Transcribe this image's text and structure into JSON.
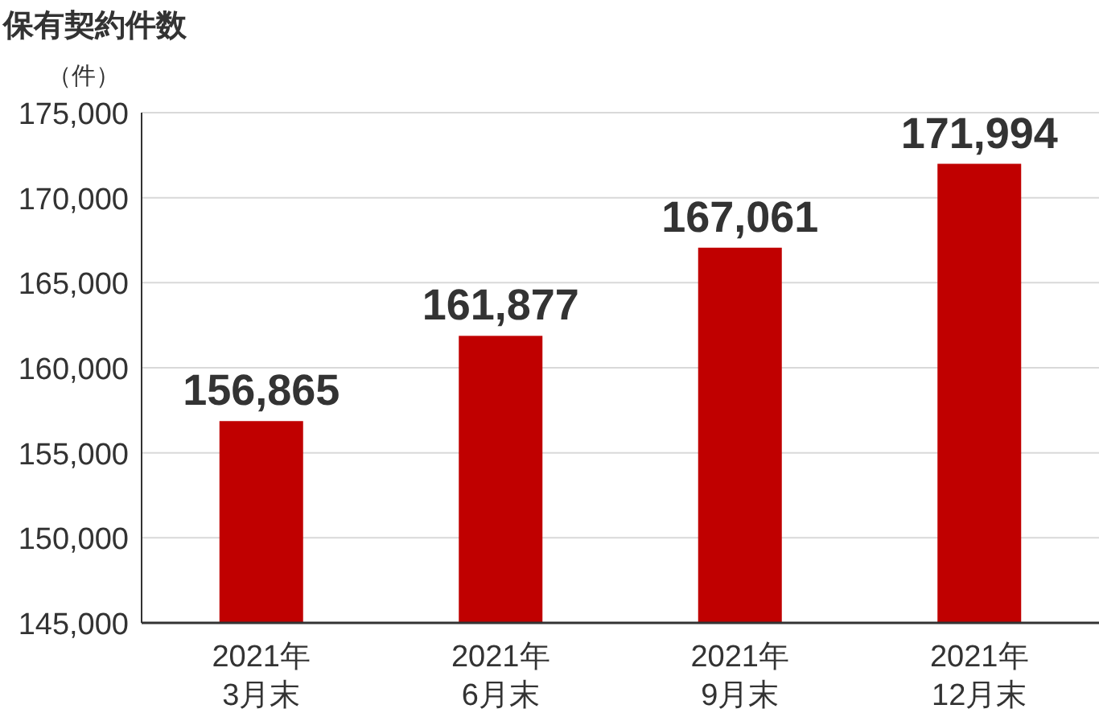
{
  "chart_data": {
    "type": "bar",
    "title": "保有契約件数",
    "ylabel": "（件）",
    "categories": [
      "2021年\n3月末",
      "2021年\n6月末",
      "2021年\n9月末",
      "2021年\n12月末"
    ],
    "values": [
      156865,
      161877,
      167061,
      171994
    ],
    "value_labels": [
      "156,865",
      "161,877",
      "167,061",
      "171,994"
    ],
    "color": "#c00000",
    "ylim": [
      145000,
      175000
    ],
    "yticks": [
      {
        "value": 145000,
        "label": "145,000"
      },
      {
        "value": 150000,
        "label": "150,000"
      },
      {
        "value": 155000,
        "label": "155,000"
      },
      {
        "value": 160000,
        "label": "160,000"
      },
      {
        "value": 165000,
        "label": "165,000"
      },
      {
        "value": 170000,
        "label": "170,000"
      },
      {
        "value": 175000,
        "label": "175,000"
      }
    ],
    "grid": "y"
  }
}
